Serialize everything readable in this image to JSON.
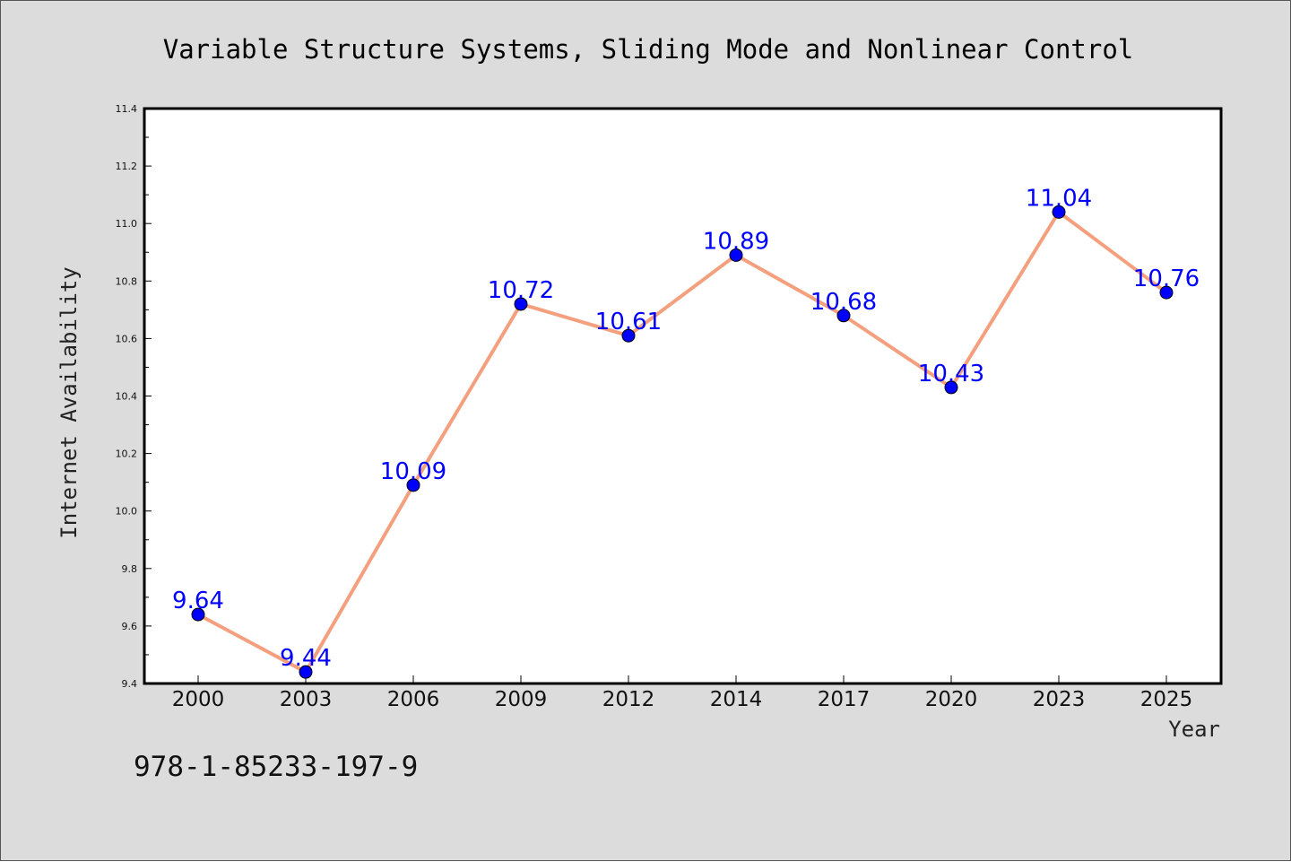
{
  "chart_data": {
    "type": "line",
    "title": "Variable Structure Systems, Sliding Mode and Nonlinear Control",
    "xlabel": "Year",
    "ylabel": "Internet Availability",
    "categories": [
      "2000",
      "2003",
      "2006",
      "2009",
      "2012",
      "2014",
      "2017",
      "2020",
      "2023",
      "2025"
    ],
    "values": [
      9.64,
      9.44,
      10.09,
      10.72,
      10.61,
      10.89,
      10.68,
      10.43,
      11.04,
      10.76
    ],
    "data_labels": [
      "9.64",
      "9.44",
      "10.09",
      "10.72",
      "10.61",
      "10.89",
      "10.68",
      "10.43",
      "11.04",
      "10.76"
    ],
    "ylim": [
      9.4,
      11.4
    ],
    "yticks": [
      "9.4",
      "9.6",
      "9.8",
      "10.0",
      "10.2",
      "10.4",
      "10.6",
      "10.8",
      "11.0",
      "11.2",
      "11.4"
    ],
    "grid": false,
    "colors": {
      "line": "#f4a07f",
      "marker": "#0000ff",
      "data_label": "#0000ff",
      "figure_background": "#dcdcdc",
      "plot_background": "#ffffff"
    }
  },
  "footnote": "978-1-85233-197-9"
}
